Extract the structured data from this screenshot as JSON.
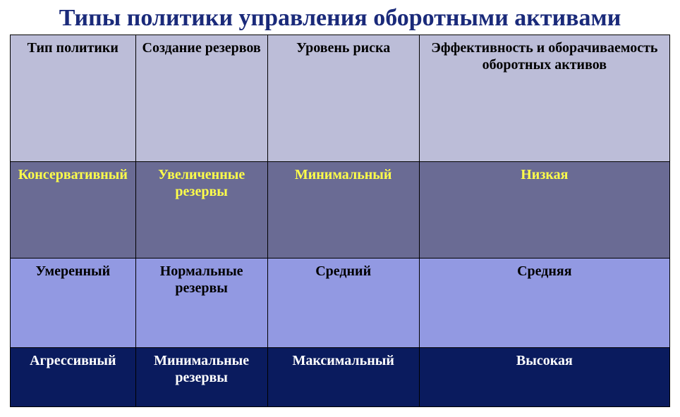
{
  "title": {
    "text": "Типы политики управления оборотными активами",
    "color": "#1a2a7a",
    "fontsize": 34
  },
  "page": {
    "background": "#ffffff"
  },
  "table": {
    "type": "table",
    "border_color": "#000000",
    "column_widths_pct": [
      19,
      20,
      23,
      38
    ],
    "columns": [
      "Тип политики",
      "Создание резервов",
      "Уровень риска",
      "Эффективность и оборачиваемость оборотных активов"
    ],
    "header": {
      "background": "#bcbdd8",
      "text_color": "#000000",
      "fontsize": 20,
      "height_pct": 34
    },
    "rows": [
      {
        "cells": [
          "Консервативный",
          "Увеличенные резервы",
          "Минимальный",
          "Низкая"
        ],
        "background": "#6a6b94",
        "text_color": "#ffff4a",
        "fontsize": 20,
        "height_pct": 26
      },
      {
        "cells": [
          "Умеренный",
          "Нормальные резервы",
          "Средний",
          "Средняя"
        ],
        "background": "#9299e2",
        "text_color": "#000000",
        "fontsize": 20,
        "height_pct": 24
      },
      {
        "cells": [
          "Агрессивный",
          "Минимальные резервы",
          "Максимальный",
          "Высокая"
        ],
        "background": "#0a1b5e",
        "text_color": "#ffffff",
        "fontsize": 20,
        "height_pct": 16
      }
    ]
  }
}
